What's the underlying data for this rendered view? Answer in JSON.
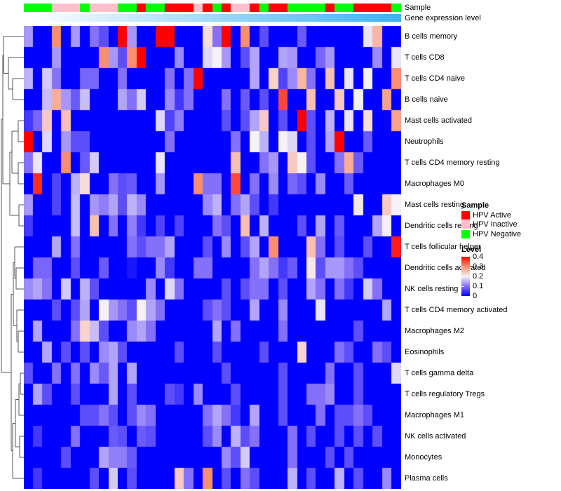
{
  "annotations": {
    "sample_label": "Sample",
    "gene_label": "Gene expression level",
    "sample_colors": {
      "active": "#FF0000",
      "inactive": "#FFC0CB",
      "negative": "#00FF00"
    },
    "gene_gradient": {
      "start": "#FFFFFF",
      "end": "#3FB3F2"
    }
  },
  "legend": {
    "sample_title": "Sample",
    "items": [
      {
        "label": "HPV Active",
        "color": "#FF0000"
      },
      {
        "label": "HPV Inactive",
        "color": "#FFC0CB"
      },
      {
        "label": "HPV Negative",
        "color": "#00FF00"
      }
    ],
    "level_title": "Level",
    "level_ticks": [
      "0.4",
      "0.3",
      "0.2",
      "0.1",
      "0"
    ]
  },
  "chart_data": {
    "type": "heatmap",
    "rows": [
      "B cells memory",
      "T cells CD8",
      "T cells CD4 naive",
      "B cells naive",
      "Mast cells activated",
      "Neutrophils",
      "T cells CD4 memory resting",
      "Macrophages M0",
      "Mast cells resting",
      "Dendritic cells resting",
      "T cells follicular helper",
      "Dendritic cells activated",
      "NK cells resting",
      "T cells CD4 memory activated",
      "Macrophages M2",
      "Eosinophils",
      "T cells gamma delta",
      "T cells regulatory Tregs",
      "Macrophages M1",
      "NK cells activated",
      "Monocytes",
      "Plasma cells"
    ],
    "n_cols": 40,
    "value_range": [
      0,
      0.4
    ],
    "row_label_side": "right",
    "colormap": [
      {
        "v": 0.0,
        "c": "#0000FF"
      },
      {
        "v": 0.1,
        "c": "#8570FA"
      },
      {
        "v": 0.2,
        "c": "#F5F1F5"
      },
      {
        "v": 0.3,
        "c": "#FA8E70"
      },
      {
        "v": 0.4,
        "c": "#FF0000"
      }
    ],
    "column_annotations": {
      "sample": [
        "negative",
        "negative",
        "negative",
        "inactive",
        "inactive",
        "inactive",
        "negative",
        "inactive",
        "inactive",
        "inactive",
        "negative",
        "negative",
        "active",
        "negative",
        "negative",
        "active",
        "active",
        "active",
        "inactive",
        "active",
        "negative",
        "active",
        "inactive",
        "inactive",
        "active",
        "negative",
        "active",
        "active",
        "negative",
        "negative",
        "negative",
        "negative",
        "active",
        "negative",
        "negative",
        "active",
        "active",
        "active",
        "active",
        "negative"
      ],
      "gene_expression_level": [
        0,
        0.026,
        0.051,
        0.077,
        0.103,
        0.128,
        0.154,
        0.179,
        0.205,
        0.231,
        0.256,
        0.282,
        0.308,
        0.333,
        0.359,
        0.385,
        0.41,
        0.436,
        0.462,
        0.487,
        0.513,
        0.538,
        0.564,
        0.59,
        0.615,
        0.641,
        0.667,
        0.692,
        0.718,
        0.744,
        0.769,
        0.795,
        0.821,
        0.846,
        0.872,
        0.897,
        0.923,
        0.949,
        0.974,
        1
      ]
    },
    "values": [
      [
        0.13,
        0,
        0,
        0.3,
        0,
        0.13,
        0,
        0.1,
        0.07,
        0,
        0.4,
        0.13,
        0,
        0,
        0.4,
        0.4,
        0,
        0,
        0,
        0.22,
        0.1,
        0.4,
        0,
        0.3,
        0,
        0.07,
        0,
        0,
        0,
        0.08,
        0,
        0,
        0,
        0,
        0,
        0,
        0.19,
        0.26,
        0,
        0
      ],
      [
        0,
        0,
        0,
        0.13,
        0,
        0,
        0,
        0,
        0.3,
        0.13,
        0.07,
        0.3,
        0.4,
        0,
        0,
        0,
        0.12,
        0,
        0,
        0.18,
        0.2,
        0.13,
        0,
        0.07,
        0.14,
        0,
        0,
        0.14,
        0.13,
        0,
        0,
        0.09,
        0.13,
        0,
        0,
        0,
        0,
        0.12,
        0,
        0.19
      ],
      [
        0.15,
        0,
        0.17,
        0.1,
        0,
        0,
        0.09,
        0.09,
        0,
        0,
        0.1,
        0,
        0,
        0,
        0,
        0.1,
        0,
        0.1,
        0.4,
        0,
        0,
        0,
        0,
        0,
        0.14,
        0,
        0.23,
        0.06,
        0.12,
        0.26,
        0.1,
        0,
        0.25,
        0,
        0.19,
        0,
        0.2,
        0,
        0,
        0.3
      ],
      [
        0,
        0,
        0.16,
        0.27,
        0.13,
        0.08,
        0.16,
        0,
        0,
        0,
        0.14,
        0.1,
        0.17,
        0,
        0,
        0.12,
        0.05,
        0.1,
        0,
        0,
        0,
        0.1,
        0,
        0.08,
        0,
        0.07,
        0,
        0.35,
        0,
        0,
        0.25,
        0,
        0,
        0.24,
        0,
        0.2,
        0,
        0,
        0.28,
        0
      ],
      [
        0.05,
        0.09,
        0.24,
        0,
        0.25,
        0,
        0,
        0,
        0,
        0,
        0,
        0,
        0,
        0,
        0.18,
        0.06,
        0.11,
        0,
        0,
        0,
        0,
        0.07,
        0,
        0.07,
        0.14,
        0.24,
        0,
        0.07,
        0,
        0.4,
        0.07,
        0,
        0.15,
        0,
        0.19,
        0,
        0.22,
        0,
        0,
        0.28
      ],
      [
        0.4,
        0,
        0.18,
        0,
        0.13,
        0.07,
        0.07,
        0,
        0,
        0,
        0,
        0,
        0,
        0,
        0,
        0.1,
        0,
        0,
        0,
        0,
        0,
        0,
        0.1,
        0,
        0.2,
        0.15,
        0,
        0.2,
        0.18,
        0,
        0.07,
        0,
        0.14,
        0.4,
        0,
        0,
        0.08,
        0,
        0,
        0
      ],
      [
        0.1,
        0.19,
        0,
        0,
        0.3,
        0,
        0.08,
        0.17,
        0,
        0,
        0,
        0,
        0,
        0,
        0.19,
        0,
        0,
        0,
        0,
        0,
        0,
        0,
        0.25,
        0,
        0,
        0.1,
        0.13,
        0,
        0.24,
        0.2,
        0.07,
        0,
        0,
        0.1,
        0.27,
        0.08,
        0,
        0,
        0,
        0
      ],
      [
        0,
        0.37,
        0,
        0.06,
        0,
        0.15,
        0.22,
        0,
        0,
        0.1,
        0.07,
        0.08,
        0,
        0,
        0.13,
        0,
        0,
        0,
        0.3,
        0.1,
        0.1,
        0,
        0.35,
        0,
        0.1,
        0,
        0.12,
        0,
        0.09,
        0.07,
        0,
        0.12,
        0,
        0,
        0.08,
        0,
        0,
        0,
        0,
        0
      ],
      [
        0.13,
        0,
        0,
        0.06,
        0,
        0.16,
        0,
        0.13,
        0.11,
        0.14,
        0.07,
        0.15,
        0.12,
        0,
        0,
        0,
        0,
        0,
        0,
        0.12,
        0.15,
        0,
        0.1,
        0.14,
        0.07,
        0,
        0.05,
        0,
        0,
        0,
        0,
        0,
        0,
        0,
        0,
        0.21,
        0,
        0,
        0.24,
        0.2
      ],
      [
        0.05,
        0,
        0,
        0,
        0,
        0.16,
        0,
        0.25,
        0,
        0.1,
        0,
        0.11,
        0.05,
        0,
        0.06,
        0,
        0.06,
        0,
        0,
        0,
        0.1,
        0.07,
        0,
        0.25,
        0,
        0.15,
        0,
        0,
        0,
        0.07,
        0,
        0.14,
        0,
        0.08,
        0,
        0,
        0,
        0.14,
        0.2,
        0
      ],
      [
        0,
        0,
        0,
        0.14,
        0,
        0.1,
        0,
        0,
        0,
        0,
        0,
        0.1,
        0.07,
        0.1,
        0.1,
        0.14,
        0,
        0,
        0,
        0.07,
        0,
        0.12,
        0,
        0.07,
        0.14,
        0,
        0.3,
        0,
        0,
        0,
        0.25,
        0.1,
        0,
        0.07,
        0,
        0,
        0.07,
        0,
        0,
        0.38
      ],
      [
        0,
        0.09,
        0.09,
        0,
        0,
        0.07,
        0,
        0,
        0.08,
        0,
        0,
        0.02,
        0,
        0,
        0.12,
        0.05,
        0,
        0,
        0.1,
        0.1,
        0,
        0,
        0,
        0,
        0.1,
        0.14,
        0.1,
        0.05,
        0.08,
        0,
        0.21,
        0.07,
        0.13,
        0.13,
        0.1,
        0.07,
        0,
        0,
        0,
        0
      ],
      [
        0.12,
        0.14,
        0.1,
        0,
        0.17,
        0,
        0.15,
        0.07,
        0,
        0,
        0,
        0,
        0,
        0.12,
        0,
        0.18,
        0.1,
        0,
        0,
        0,
        0,
        0.07,
        0,
        0.07,
        0.1,
        0.1,
        0,
        0.07,
        0,
        0,
        0.14,
        0.1,
        0,
        0.1,
        0.05,
        0,
        0.17,
        0.1,
        0,
        0
      ],
      [
        0,
        0,
        0,
        0.07,
        0,
        0.07,
        0.14,
        0,
        0.2,
        0.13,
        0.1,
        0.07,
        0.2,
        0.14,
        0.1,
        0,
        0,
        0,
        0,
        0.07,
        0.1,
        0.07,
        0,
        0,
        0.14,
        0,
        0,
        0.12,
        0,
        0,
        0,
        0.19,
        0,
        0,
        0,
        0,
        0,
        0,
        0.14,
        0
      ],
      [
        0,
        0.14,
        0,
        0,
        0,
        0.1,
        0.23,
        0.16,
        0.07,
        0,
        0,
        0.12,
        0.14,
        0.1,
        0,
        0,
        0,
        0,
        0,
        0,
        0.14,
        0,
        0.1,
        0,
        0,
        0,
        0,
        0.1,
        0,
        0,
        0,
        0,
        0,
        0,
        0,
        0.07,
        0,
        0,
        0,
        0
      ],
      [
        0,
        0,
        0.14,
        0,
        0.07,
        0,
        0.07,
        0,
        0.12,
        0.14,
        0.07,
        0,
        0,
        0,
        0,
        0,
        0.07,
        0,
        0,
        0,
        0.07,
        0,
        0,
        0,
        0,
        0.07,
        0,
        0,
        0,
        0.23,
        0,
        0,
        0,
        0.1,
        0.07,
        0,
        0,
        0.1,
        0.07,
        0
      ],
      [
        0.07,
        0,
        0,
        0.1,
        0,
        0.1,
        0,
        0.12,
        0.08,
        0.14,
        0,
        0.14,
        0,
        0,
        0,
        0,
        0,
        0,
        0,
        0,
        0,
        0.07,
        0,
        0,
        0,
        0,
        0,
        0.07,
        0,
        0,
        0,
        0,
        0.1,
        0,
        0,
        0.07,
        0,
        0,
        0,
        0.18
      ],
      [
        0,
        0.14,
        0.07,
        0,
        0,
        0.07,
        0,
        0,
        0,
        0.14,
        0,
        0.07,
        0,
        0,
        0,
        0.07,
        0.05,
        0,
        0.12,
        0,
        0,
        0,
        0.07,
        0,
        0,
        0,
        0,
        0.07,
        0,
        0,
        0.1,
        0.1,
        0.12,
        0,
        0,
        0.07,
        0,
        0,
        0,
        0
      ],
      [
        0,
        0,
        0,
        0,
        0,
        0,
        0.07,
        0.07,
        0.1,
        0.07,
        0,
        0.07,
        0.12,
        0.1,
        0,
        0,
        0,
        0,
        0,
        0.1,
        0.14,
        0.1,
        0.05,
        0,
        0.14,
        0,
        0,
        0.07,
        0,
        0,
        0,
        0.1,
        0,
        0.07,
        0.07,
        0.1,
        0.07,
        0,
        0,
        0
      ],
      [
        0,
        0.05,
        0,
        0,
        0,
        0.1,
        0,
        0,
        0,
        0.08,
        0.07,
        0,
        0.08,
        0.07,
        0,
        0,
        0,
        0,
        0,
        0.07,
        0.12,
        0,
        0.15,
        0.07,
        0.1,
        0,
        0,
        0,
        0.1,
        0,
        0.07,
        0,
        0,
        0.07,
        0,
        0.07,
        0,
        0.07,
        0,
        0
      ],
      [
        0,
        0,
        0,
        0,
        0.07,
        0,
        0,
        0,
        0.14,
        0.11,
        0.11,
        0.08,
        0,
        0,
        0,
        0,
        0,
        0,
        0,
        0,
        0,
        0.12,
        0.07,
        0.17,
        0,
        0,
        0,
        0,
        0.1,
        0,
        0,
        0,
        0.07,
        0,
        0.07,
        0,
        0,
        0,
        0,
        0
      ],
      [
        0,
        0.05,
        0,
        0,
        0,
        0,
        0,
        0.07,
        0,
        0.17,
        0,
        0.07,
        0,
        0,
        0,
        0,
        0.24,
        0.1,
        0,
        0.3,
        0,
        0.07,
        0,
        0.1,
        0.07,
        0,
        0,
        0,
        0.15,
        0,
        0.07,
        0,
        0,
        0.15,
        0,
        0.07,
        0,
        0,
        0.12,
        0
      ]
    ]
  },
  "dendrogram": {
    "stroke": "#565656",
    "tree": [
      2,
      [
        4,
        [
          5,
          1,
          [
            12,
            2,
            [
              18,
              3,
              4
            ]
          ]
        ],
        [
          14,
          [
            17,
            [
              26,
              5,
              6
            ],
            [
              26,
              7,
              8
            ]
          ],
          [
            27,
            9,
            10
          ]
        ]
      ],
      [
        16,
        [
          19,
          [
            21,
            11,
            [
              23,
              12,
              13
            ]
          ],
          [
            24,
            14,
            [
              26,
              15,
              16
            ]
          ]
        ],
        [
          18,
          [
            22,
            [
              27,
              [
                29,
                17,
                18
              ],
              19
            ],
            [
              28,
              20,
              21
            ]
          ],
          22
        ]
      ]
    ]
  }
}
